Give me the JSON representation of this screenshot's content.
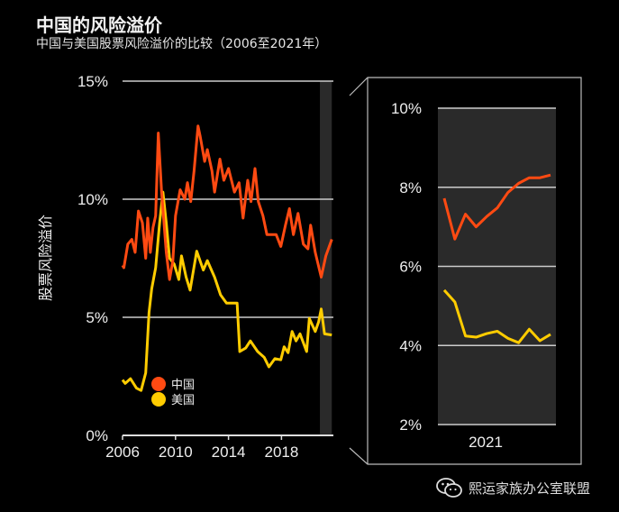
{
  "header": {
    "title": "中国的风险溢价",
    "subtitle": "中国与美国股票风险溢价的比较（2006至2021年）"
  },
  "watermark": {
    "text": "熙运家族办公室联盟",
    "icon": "wechat-icon"
  },
  "colors": {
    "china": "#ff4a12",
    "usa": "#ffcc00",
    "background": "#000000",
    "highlight_band": "#2a2a2a"
  },
  "chart_data": [
    {
      "type": "line",
      "ylabel": "股票风险溢价",
      "xlabel": "",
      "xlim": [
        2006,
        2021.9
      ],
      "ylim": [
        0,
        15
      ],
      "x_ticks": [
        "2006",
        "2010",
        "2014",
        "2018"
      ],
      "y_ticks": [
        "0%",
        "5%",
        "10%",
        "15%"
      ],
      "grid": true,
      "legend": {
        "placement": "bottom-left",
        "entries": [
          "中国",
          "美国"
        ]
      },
      "highlight_range": [
        2020.9,
        2021.8
      ],
      "series": [
        {
          "name": "中国",
          "points": [
            [
              2006.0,
              7.2
            ],
            [
              2006.1,
              7.1
            ],
            [
              2006.4,
              8.1
            ],
            [
              2006.7,
              8.3
            ],
            [
              2006.95,
              7.75
            ],
            [
              2007.2,
              9.5
            ],
            [
              2007.5,
              9.0
            ],
            [
              2007.75,
              7.5
            ],
            [
              2007.9,
              9.2
            ],
            [
              2008.1,
              7.75
            ],
            [
              2008.3,
              8.8
            ],
            [
              2008.5,
              9.3
            ],
            [
              2008.7,
              12.8
            ],
            [
              2008.95,
              10.3
            ],
            [
              2009.3,
              7.75
            ],
            [
              2009.55,
              6.6
            ],
            [
              2009.8,
              7.4
            ],
            [
              2010.0,
              9.3
            ],
            [
              2010.35,
              10.4
            ],
            [
              2010.7,
              10.0
            ],
            [
              2010.9,
              10.7
            ],
            [
              2011.15,
              9.9
            ],
            [
              2011.4,
              11.2
            ],
            [
              2011.7,
              13.1
            ],
            [
              2011.85,
              12.7
            ],
            [
              2012.2,
              11.6
            ],
            [
              2012.4,
              12.1
            ],
            [
              2012.75,
              11.2
            ],
            [
              2012.95,
              10.3
            ],
            [
              2013.35,
              11.7
            ],
            [
              2013.65,
              10.8
            ],
            [
              2014.0,
              11.3
            ],
            [
              2014.45,
              10.3
            ],
            [
              2014.8,
              10.7
            ],
            [
              2015.1,
              9.2
            ],
            [
              2015.45,
              10.8
            ],
            [
              2015.7,
              9.9
            ],
            [
              2016.0,
              11.3
            ],
            [
              2016.25,
              9.9
            ],
            [
              2016.6,
              9.3
            ],
            [
              2016.9,
              8.5
            ],
            [
              2017.6,
              8.5
            ],
            [
              2017.95,
              8.0
            ],
            [
              2018.3,
              8.9
            ],
            [
              2018.6,
              9.6
            ],
            [
              2018.9,
              8.5
            ],
            [
              2019.25,
              9.4
            ],
            [
              2019.65,
              8.1
            ],
            [
              2020.0,
              7.9
            ],
            [
              2020.2,
              8.9
            ],
            [
              2020.55,
              7.75
            ],
            [
              2021.0,
              6.7
            ],
            [
              2021.35,
              7.6
            ],
            [
              2021.8,
              8.3
            ]
          ]
        },
        {
          "name": "美国",
          "points": [
            [
              2006.0,
              2.35
            ],
            [
              2006.2,
              2.2
            ],
            [
              2006.6,
              2.4
            ],
            [
              2007.05,
              2.0
            ],
            [
              2007.4,
              1.9
            ],
            [
              2007.75,
              2.65
            ],
            [
              2008.0,
              5.2
            ],
            [
              2008.2,
              6.2
            ],
            [
              2008.5,
              7.1
            ],
            [
              2008.8,
              9.0
            ],
            [
              2009.05,
              10.3
            ],
            [
              2009.3,
              9.0
            ],
            [
              2009.55,
              7.5
            ],
            [
              2009.9,
              7.25
            ],
            [
              2010.25,
              6.6
            ],
            [
              2010.45,
              7.6
            ],
            [
              2010.8,
              6.7
            ],
            [
              2011.1,
              6.15
            ],
            [
              2011.6,
              7.8
            ],
            [
              2012.1,
              7.0
            ],
            [
              2012.4,
              7.4
            ],
            [
              2012.95,
              6.7
            ],
            [
              2013.4,
              5.95
            ],
            [
              2013.85,
              5.6
            ],
            [
              2014.65,
              5.6
            ],
            [
              2014.85,
              3.55
            ],
            [
              2015.3,
              3.7
            ],
            [
              2015.65,
              4.0
            ],
            [
              2016.2,
              3.55
            ],
            [
              2016.7,
              3.3
            ],
            [
              2017.05,
              2.9
            ],
            [
              2017.5,
              3.25
            ],
            [
              2017.95,
              3.2
            ],
            [
              2018.2,
              3.75
            ],
            [
              2018.5,
              3.5
            ],
            [
              2018.8,
              4.4
            ],
            [
              2019.1,
              4.0
            ],
            [
              2019.4,
              4.3
            ],
            [
              2019.9,
              3.55
            ],
            [
              2020.1,
              4.95
            ],
            [
              2020.55,
              4.4
            ],
            [
              2020.8,
              4.8
            ],
            [
              2021.0,
              5.35
            ],
            [
              2021.25,
              4.3
            ],
            [
              2021.8,
              4.25
            ]
          ]
        }
      ]
    },
    {
      "type": "line",
      "xlabel": "2021",
      "ylim": [
        2,
        10
      ],
      "y_ticks": [
        "2%",
        "4%",
        "6%",
        "8%",
        "10%"
      ],
      "grid": true,
      "series": [
        {
          "name": "中国",
          "values": [
            7.72,
            6.69,
            7.32,
            7.0,
            7.26,
            7.48,
            7.87,
            8.1,
            8.24,
            8.24,
            8.31
          ]
        },
        {
          "name": "美国",
          "values": [
            5.4,
            5.1,
            4.24,
            4.21,
            4.3,
            4.36,
            4.18,
            4.07,
            4.41,
            4.12,
            4.28
          ]
        }
      ]
    }
  ]
}
